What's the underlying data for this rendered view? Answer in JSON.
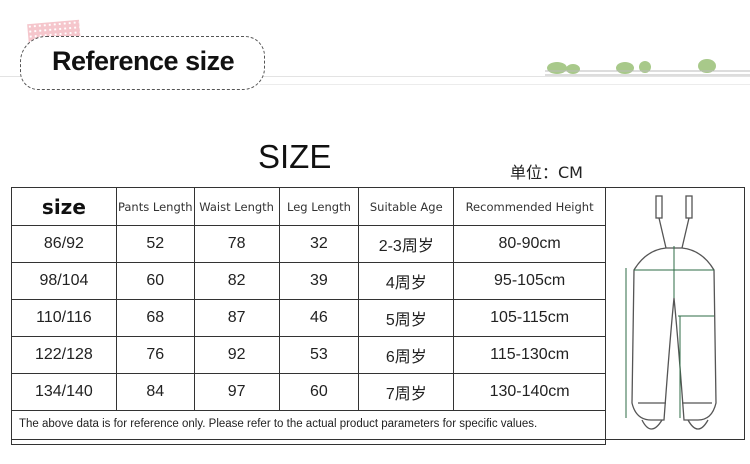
{
  "banner": {
    "title": "Reference size"
  },
  "heading": "SIZE",
  "unit": "单位：CM",
  "table": {
    "headers": [
      "size",
      "Pants Length",
      "Waist Length",
      "Leg Length",
      "Suitable Age",
      "Recommended Height"
    ],
    "rows": [
      [
        "86/92",
        "52",
        "78",
        "32",
        "2-3周岁",
        "80-90cm"
      ],
      [
        "98/104",
        "60",
        "82",
        "39",
        "4周岁",
        "95-105cm"
      ],
      [
        "110/116",
        "68",
        "87",
        "46",
        "5周岁",
        "105-115cm"
      ],
      [
        "122/128",
        "76",
        "92",
        "53",
        "6周岁",
        "115-130cm"
      ],
      [
        "134/140",
        "84",
        "97",
        "60",
        "7周岁",
        "130-140cm"
      ]
    ]
  },
  "note": "The above data is for reference only. Please refer to the actual product parameters for specific values.",
  "diagram": {
    "icon": "overalls-measurement-diagram",
    "accent": "#2e6b45"
  }
}
